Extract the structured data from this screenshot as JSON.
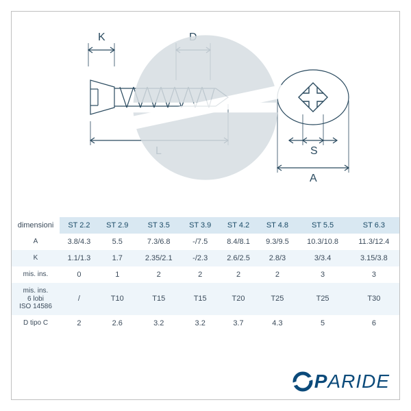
{
  "diagram": {
    "labels": {
      "K": "K",
      "D": "D",
      "L": "L",
      "S": "S",
      "A": "A"
    },
    "stroke": "#2a4a5f",
    "stroke_thin": "#2a4a5f",
    "line_width": 1.2,
    "thin_width": 0.8,
    "font_size": 16,
    "background": "#ffffff"
  },
  "watermark": {
    "circle_fill": "#d6dde2",
    "slash_fill": "#ffffff"
  },
  "table": {
    "header_bg": "#d9e8f2",
    "stripe_bg": "#eef5fa",
    "text_color": "#3a4a5a",
    "header_color": "#1a4a66",
    "font_size": 11,
    "corner_label": "dimensioni",
    "columns": [
      "ST 2.2",
      "ST 2.9",
      "ST 3.5",
      "ST 3.9",
      "ST 4.2",
      "ST 4.8",
      "ST 5.5",
      "ST 6.3"
    ],
    "rows": [
      {
        "label": "A",
        "cells": [
          "3.8/4.3",
          "5.5",
          "7.3/6.8",
          "-/7.5",
          "8.4/8.1",
          "9.3/9.5",
          "10.3/10.8",
          "11.3/12.4"
        ]
      },
      {
        "label": "K",
        "cells": [
          "1.1/1.3",
          "1.7",
          "2.35/2.1",
          "-/2.3",
          "2.6/2.5",
          "2.8/3",
          "3/3.4",
          "3.15/3.8"
        ]
      },
      {
        "label": "mis. ins.",
        "cells": [
          "0",
          "1",
          "2",
          "2",
          "2",
          "2",
          "3",
          "3"
        ]
      },
      {
        "label": "mis. ins.\n6 lobi\nISO 14586",
        "cells": [
          "/",
          "T10",
          "T15",
          "T15",
          "T20",
          "T25",
          "T25",
          "T30"
        ]
      },
      {
        "label": "D tipo C",
        "cells": [
          "2",
          "2.6",
          "3.2",
          "3.2",
          "3.7",
          "4.3",
          "5",
          "6"
        ]
      }
    ]
  },
  "brand": {
    "text_prefix": "P",
    "text_suffix": "ARIDE",
    "color": "#0b4a7a",
    "ring_outer": "#0b4a7a",
    "ring_gap": "#ffffff"
  }
}
